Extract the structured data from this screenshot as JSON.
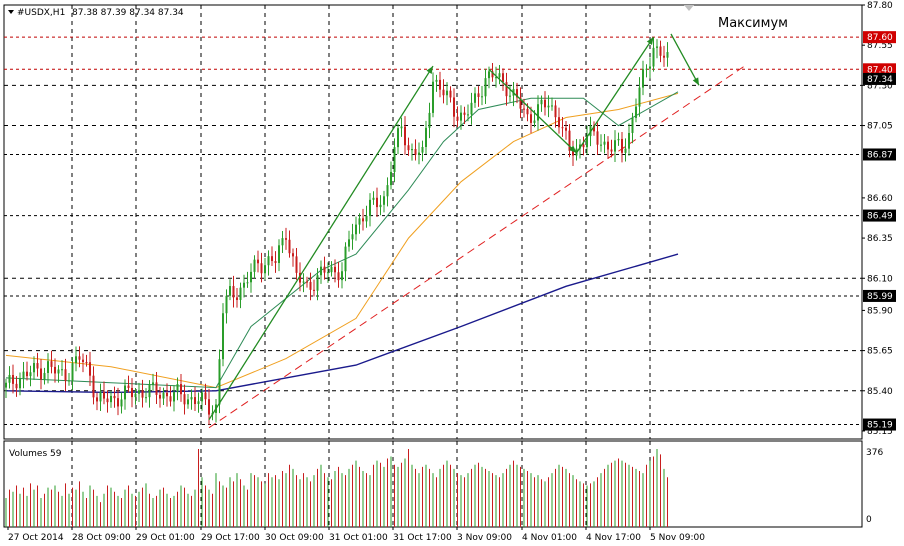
{
  "header": {
    "symbol_label": "#USDX,H1",
    "ohlc_label": "87.38 87.39 87.34 87.34"
  },
  "annotation_text": "Максимум",
  "volume_label": "Volumes 59",
  "colors": {
    "bull": "#2a9d2a",
    "bear": "#c81e1e",
    "ma_fast": "#2e8b57",
    "ma_mid": "#f0a020",
    "ma_slow": "#1a1a8c",
    "trend": "#e02020",
    "arrow": "#228b22"
  },
  "chart_data": {
    "type": "candlestick",
    "ylim": [
      85.1,
      87.8
    ],
    "y_ticks": [
      "87.80",
      "87.55",
      "87.30",
      "87.05",
      "86.60",
      "86.35",
      "86.10",
      "85.90",
      "85.65",
      "85.40",
      "85.15"
    ],
    "highlight_levels": [
      {
        "label": "87.60",
        "value": 87.6,
        "style": "red-box",
        "line": "red"
      },
      {
        "label": "87.40",
        "value": 87.4,
        "style": "red-box",
        "line": "red"
      },
      {
        "label": "87.34",
        "value": 87.34,
        "style": "black-box",
        "line": "none"
      },
      {
        "label": "86.87",
        "value": 86.87,
        "style": "black-box",
        "line": "black"
      },
      {
        "label": "86.49",
        "value": 86.49,
        "style": "black-box",
        "line": "black"
      },
      {
        "label": "85.99",
        "value": 85.99,
        "style": "black-box",
        "line": "black"
      },
      {
        "label": "85.19",
        "value": 85.19,
        "style": "black-box",
        "line": "black"
      }
    ],
    "x_labels": [
      "27 Oct 2014",
      "28 Oct 09:00",
      "29 Oct 01:00",
      "29 Oct 17:00",
      "30 Oct 09:00",
      "31 Oct 01:00",
      "31 Oct 17:00",
      "3 Nov 09:00",
      "4 Nov 01:00",
      "4 Nov 17:00",
      "5 Nov 09:00"
    ],
    "close_anchors": [
      [
        0,
        85.42
      ],
      [
        3,
        85.48
      ],
      [
        6,
        85.5
      ],
      [
        9,
        85.53
      ],
      [
        12,
        85.55
      ],
      [
        15,
        85.5
      ],
      [
        18,
        85.52
      ],
      [
        21,
        85.6
      ],
      [
        24,
        85.52
      ],
      [
        26,
        85.33
      ],
      [
        30,
        85.35
      ],
      [
        35,
        85.38
      ],
      [
        40,
        85.4
      ],
      [
        45,
        85.38
      ],
      [
        50,
        85.37
      ],
      [
        55,
        85.34
      ],
      [
        58,
        85.3
      ],
      [
        60,
        85.3
      ],
      [
        61,
        85.6
      ],
      [
        62,
        85.9
      ],
      [
        64,
        86.0
      ],
      [
        68,
        86.05
      ],
      [
        72,
        86.2
      ],
      [
        77,
        86.2
      ],
      [
        80,
        86.4
      ],
      [
        83,
        86.1
      ],
      [
        86,
        86.05
      ],
      [
        89,
        86.1
      ],
      [
        92,
        86.15
      ],
      [
        96,
        86.15
      ],
      [
        99,
        86.4
      ],
      [
        102,
        86.5
      ],
      [
        105,
        86.55
      ],
      [
        108,
        86.6
      ],
      [
        110,
        86.8
      ],
      [
        113,
        87.05
      ],
      [
        115,
        86.9
      ],
      [
        117,
        86.9
      ],
      [
        119,
        86.85
      ],
      [
        122,
        87.35
      ],
      [
        125,
        87.25
      ],
      [
        128,
        87.15
      ],
      [
        131,
        87.1
      ],
      [
        134,
        87.2
      ],
      [
        137,
        87.35
      ],
      [
        140,
        87.35
      ],
      [
        143,
        87.3
      ],
      [
        146,
        87.2
      ],
      [
        149,
        87.1
      ],
      [
        152,
        87.15
      ],
      [
        155,
        87.18
      ],
      [
        158,
        87.1
      ],
      [
        161,
        86.88
      ],
      [
        163,
        86.9
      ],
      [
        166,
        87.0
      ],
      [
        170,
        86.95
      ],
      [
        173,
        86.92
      ],
      [
        176,
        86.9
      ],
      [
        178,
        87.0
      ],
      [
        180,
        87.2
      ],
      [
        183,
        87.4
      ],
      [
        185,
        87.55
      ],
      [
        187,
        87.5
      ],
      [
        189,
        87.45
      ],
      [
        191,
        87.38
      ],
      [
        192,
        87.34
      ]
    ],
    "ma_fast": [
      [
        0,
        85.48
      ],
      [
        30,
        85.45
      ],
      [
        60,
        85.42
      ],
      [
        70,
        85.8
      ],
      [
        90,
        86.15
      ],
      [
        100,
        86.25
      ],
      [
        115,
        86.65
      ],
      [
        125,
        86.95
      ],
      [
        135,
        87.15
      ],
      [
        150,
        87.22
      ],
      [
        165,
        87.22
      ],
      [
        175,
        87.05
      ],
      [
        192,
        87.26
      ]
    ],
    "ma_mid": [
      [
        0,
        85.62
      ],
      [
        30,
        85.55
      ],
      [
        60,
        85.42
      ],
      [
        80,
        85.6
      ],
      [
        100,
        85.85
      ],
      [
        115,
        86.35
      ],
      [
        130,
        86.7
      ],
      [
        145,
        86.95
      ],
      [
        160,
        87.1
      ],
      [
        175,
        87.15
      ],
      [
        192,
        87.25
      ]
    ],
    "ma_slow": [
      [
        0,
        85.4
      ],
      [
        30,
        85.39
      ],
      [
        60,
        85.4
      ],
      [
        100,
        85.56
      ],
      [
        130,
        85.8
      ],
      [
        160,
        86.05
      ],
      [
        192,
        86.25
      ]
    ],
    "trend_line": [
      [
        58,
        85.17
      ],
      [
        211,
        87.42
      ]
    ],
    "arrows": [
      [
        [
          58,
          85.22
        ],
        [
          122,
          87.42
        ]
      ],
      [
        [
          138,
          87.4
        ],
        [
          163,
          86.88
        ]
      ],
      [
        [
          163,
          86.88
        ],
        [
          185,
          87.6
        ]
      ],
      [
        [
          190,
          87.62
        ],
        [
          198,
          87.3
        ]
      ]
    ],
    "volumes": [
      140,
      180,
      170,
      200,
      160,
      190,
      150,
      210,
      180,
      200,
      140,
      160,
      190,
      180,
      200,
      170,
      150,
      210,
      160,
      190,
      180,
      220,
      170,
      140,
      200,
      180,
      150,
      120,
      160,
      200,
      190,
      170,
      150,
      140,
      180,
      200,
      160,
      150,
      170,
      190,
      210,
      160,
      140,
      150,
      180,
      190,
      160,
      140,
      150,
      170,
      200,
      190,
      160,
      150,
      180,
      376,
      240,
      200,
      180,
      160,
      260,
      220,
      200,
      190,
      240,
      220,
      260,
      230,
      200,
      180,
      260,
      250,
      240,
      220,
      210,
      260,
      240,
      250,
      230,
      270,
      260,
      300,
      280,
      250,
      230,
      260,
      240,
      220,
      250,
      280,
      300,
      260,
      240,
      230,
      270,
      290,
      260,
      250,
      280,
      300,
      320,
      290,
      270,
      260,
      250,
      300,
      320,
      310,
      290,
      330,
      340,
      300,
      290,
      310,
      330,
      376,
      300,
      280,
      260,
      290,
      300,
      280,
      260,
      240,
      280,
      300,
      320,
      300,
      280,
      260,
      250,
      240,
      260,
      280,
      300,
      310,
      290,
      280,
      270,
      260,
      250,
      240,
      260,
      280,
      300,
      320,
      300,
      290,
      280,
      270,
      260,
      240,
      250,
      230,
      220,
      240,
      260,
      280,
      300,
      290,
      280,
      260,
      250,
      230,
      220,
      210,
      200,
      210,
      220,
      240,
      260,
      280,
      300,
      310,
      320,
      330,
      320,
      310,
      300,
      290,
      280,
      270,
      260,
      300,
      320,
      340,
      376,
      350,
      280,
      240
    ]
  }
}
